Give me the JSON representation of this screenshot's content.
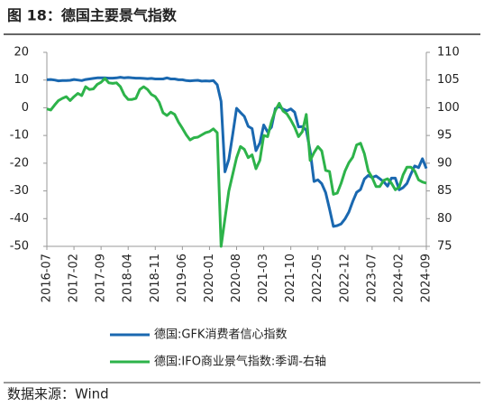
{
  "chart_data": {
    "type": "line",
    "title": "图 18：德国主要景气指数",
    "source": "数据来源：Wind",
    "categories": [
      "2016-07",
      null,
      null,
      null,
      null,
      null,
      null,
      "2017-02",
      null,
      null,
      null,
      null,
      null,
      null,
      "2017-09",
      null,
      null,
      null,
      null,
      null,
      null,
      "2018-04",
      null,
      null,
      null,
      null,
      null,
      null,
      "2018-11",
      null,
      null,
      null,
      null,
      null,
      null,
      "2019-06",
      null,
      null,
      null,
      null,
      null,
      null,
      "2020-01",
      null,
      null,
      null,
      null,
      null,
      null,
      "2020-08",
      null,
      null,
      null,
      null,
      null,
      null,
      "2021-03",
      null,
      null,
      null,
      null,
      null,
      null,
      "2021-10",
      null,
      null,
      null,
      null,
      null,
      null,
      "2022-05",
      null,
      null,
      null,
      null,
      null,
      null,
      "2022-12",
      null,
      null,
      null,
      null,
      null,
      null,
      "2023-07",
      null,
      null,
      null,
      null,
      null,
      null,
      "2024-02",
      null,
      null,
      null,
      null,
      null,
      null,
      "2024-09"
    ],
    "series": [
      {
        "name": "德国:GFK消费者信心指数",
        "color": "#1a68b0",
        "axis": "y",
        "values": [
          10.1,
          10.2,
          10,
          9.7,
          9.8,
          9.8,
          9.9,
          10.2,
          10,
          9.8,
          10.2,
          10.4,
          10.6,
          10.8,
          10.8,
          10.8,
          10.7,
          10.7,
          10.8,
          11,
          10.8,
          10.9,
          10.8,
          10.7,
          10.7,
          10.6,
          10.5,
          10.6,
          10.4,
          10.4,
          10.4,
          10.8,
          10.4,
          10.4,
          10.1,
          10.1,
          9.8,
          9.7,
          9.8,
          9.9,
          9.6,
          9.7,
          9.6,
          9.8,
          8.3,
          2.3,
          -23.1,
          -18.6,
          -9.6,
          -0.2,
          -1.7,
          -3.1,
          -6.7,
          -7.5,
          -15.5,
          -12.7,
          -6.2,
          -8.7,
          -7.0,
          -0.3,
          0.4,
          -0.5,
          -1.1,
          -0.4,
          -1.6,
          -6.9,
          -6.8,
          -8.1,
          -15.5,
          -26.6,
          -26.0,
          -27.4,
          -30.6,
          -36.5,
          -42.8,
          -42.5,
          -41.9,
          -40.1,
          -37.6,
          -33.8,
          -30.5,
          -29.5,
          -25.7,
          -24.4,
          -25.2,
          -24.6,
          -25.6,
          -26.7,
          -28.3,
          -25.4,
          -25.4,
          -29.6,
          -28.8,
          -27.3,
          -24.0,
          -21.0,
          -21.6,
          -18.4,
          -21.9
        ]
      },
      {
        "name": "德国:IFO商业景气指数:季调-右轴",
        "color": "#2db34a",
        "axis": "y2",
        "values": [
          99.8,
          99.6,
          100.5,
          101.3,
          101.7,
          102,
          101.3,
          102,
          102.6,
          102.2,
          103.8,
          103.3,
          103.4,
          104.2,
          104.6,
          105.3,
          104.5,
          104.4,
          104.5,
          103.8,
          102.3,
          101.5,
          101.5,
          101.7,
          103.3,
          103.8,
          103.3,
          102.4,
          102,
          101,
          99.1,
          98.6,
          99.2,
          98.8,
          97.4,
          96.3,
          95.1,
          94.2,
          94.6,
          94.7,
          95.1,
          95.5,
          95.7,
          96.2,
          95.5,
          75,
          80,
          85,
          88,
          91,
          93,
          92.5,
          91,
          91.5,
          89,
          90.5,
          95,
          94.8,
          97.5,
          99.5,
          100.8,
          99.4,
          98.9,
          97.8,
          96.5,
          94.8,
          95.7,
          98.8,
          90.5,
          91.9,
          93,
          92.2,
          88.7,
          88.5,
          84.4,
          84.6,
          86.4,
          88.6,
          90.1,
          91.1,
          93.3,
          93.6,
          91.7,
          88.6,
          87.4,
          85.8,
          85.8,
          86.9,
          87.2,
          86.4,
          85.2,
          85.7,
          87.9,
          89.3,
          89.3,
          88.6,
          87,
          86.6,
          86.4
        ]
      }
    ],
    "ylim": [
      -50,
      20
    ],
    "yticks": [
      -50,
      -40,
      -30,
      -20,
      -10,
      0,
      10,
      20
    ],
    "y2lim": [
      75,
      110
    ],
    "y2ticks": [
      75,
      80,
      85,
      90,
      95,
      100,
      105,
      110
    ],
    "grid": false
  }
}
